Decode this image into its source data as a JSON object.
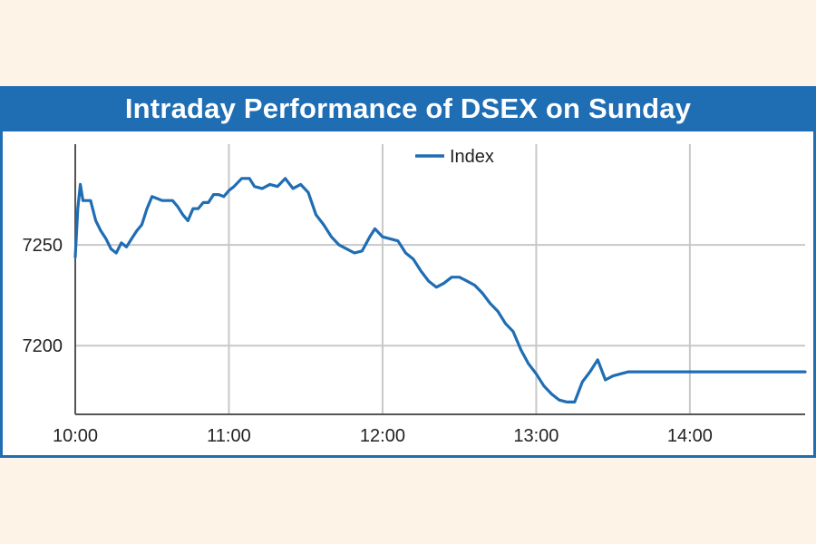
{
  "title": "Intraday Performance of DSEX on Sunday",
  "colors": {
    "band": "#1f6db3",
    "line": "#1f6db3",
    "grid": "#c8c8c8",
    "background": "#fdf3e6"
  },
  "chart_data": {
    "type": "line",
    "title": "Intraday Performance of DSEX on Sunday",
    "xlabel": "",
    "ylabel": "",
    "legend": "top-center",
    "grid": true,
    "x_ticks": [
      "10:00",
      "11:00",
      "12:00",
      "13:00",
      "14:00"
    ],
    "y_ticks": [
      7250,
      7200
    ],
    "xlim": [
      "10:00",
      "14:45"
    ],
    "ylim": [
      7165,
      7300
    ],
    "series": [
      {
        "name": "Index",
        "color": "#1f6db3",
        "x": [
          "10:00",
          "10:01",
          "10:02",
          "10:03",
          "10:04",
          "10:06",
          "10:08",
          "10:10",
          "10:12",
          "10:14",
          "10:16",
          "10:18",
          "10:20",
          "10:22",
          "10:24",
          "10:26",
          "10:28",
          "10:30",
          "10:32",
          "10:34",
          "10:36",
          "10:38",
          "10:40",
          "10:42",
          "10:44",
          "10:46",
          "10:48",
          "10:50",
          "10:52",
          "10:54",
          "10:56",
          "10:58",
          "11:00",
          "11:02",
          "11:05",
          "11:08",
          "11:10",
          "11:13",
          "11:16",
          "11:19",
          "11:22",
          "11:25",
          "11:28",
          "11:31",
          "11:34",
          "11:37",
          "11:40",
          "11:43",
          "11:46",
          "11:49",
          "11:52",
          "11:55",
          "11:57",
          "12:00",
          "12:03",
          "12:06",
          "12:09",
          "12:12",
          "12:15",
          "12:18",
          "12:21",
          "12:24",
          "12:27",
          "12:30",
          "12:33",
          "12:36",
          "12:39",
          "12:42",
          "12:45",
          "12:48",
          "12:51",
          "12:54",
          "12:57",
          "13:00",
          "13:03",
          "13:06",
          "13:09",
          "13:12",
          "13:15",
          "13:18",
          "13:21",
          "13:24",
          "13:27",
          "13:30",
          "13:33",
          "13:36",
          "13:39",
          "13:42",
          "13:45",
          "13:48",
          "13:51",
          "13:54",
          "13:57",
          "14:00",
          "14:03",
          "14:06",
          "14:09",
          "14:12",
          "14:15",
          "14:18",
          "14:21",
          "14:23",
          "14:25",
          "14:26",
          "14:27",
          "14:28",
          "14:29",
          "14:30",
          "14:33",
          "14:36",
          "14:39",
          "14:42",
          "14:45"
        ],
        "values": [
          7244,
          7268,
          7280,
          7272,
          7272,
          7272,
          7262,
          7257,
          7253,
          7248,
          7246,
          7251,
          7249,
          7253,
          7257,
          7260,
          7268,
          7274,
          7273,
          7272,
          7272,
          7272,
          7269,
          7265,
          7262,
          7268,
          7268,
          7271,
          7271,
          7275,
          7275,
          7274,
          7277,
          7279,
          7283,
          7283,
          7279,
          7278,
          7280,
          7279,
          7283,
          7278,
          7280,
          7276,
          7265,
          7260,
          7254,
          7250,
          7248,
          7246,
          7247,
          7254,
          7258,
          7254,
          7253,
          7252,
          7246,
          7243,
          7237,
          7232,
          7229,
          7231,
          7234,
          7234,
          7232,
          7230,
          7226,
          7221,
          7217,
          7211,
          7207,
          7198,
          7191,
          7186,
          7180,
          7176,
          7173,
          7172,
          7172,
          7182,
          7187,
          7193,
          7183,
          7185,
          7186,
          7187,
          7187,
          7187,
          7187,
          7187,
          7187,
          7187,
          7187,
          7187,
          7187,
          7187,
          7187,
          7187,
          7187,
          7187,
          7187,
          7187,
          7187,
          7187,
          7187,
          7187,
          7187,
          7187,
          7187,
          7187,
          7187,
          7187,
          7187
        ]
      }
    ]
  }
}
